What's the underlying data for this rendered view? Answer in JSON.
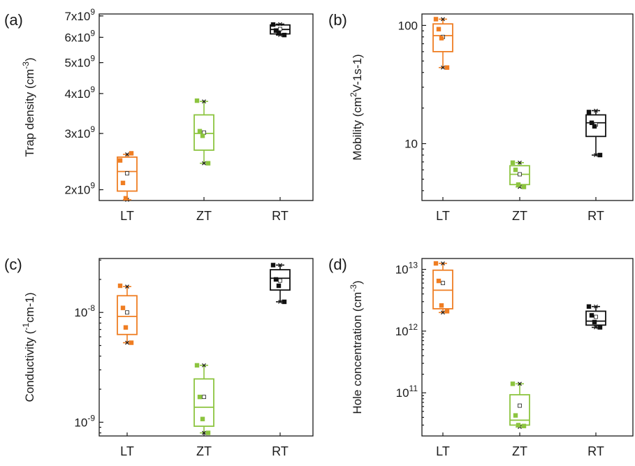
{
  "colors": {
    "LT": "#ef7d22",
    "ZT": "#8cc43f",
    "RT": "#111111"
  },
  "chart_data": [
    {
      "type": "box",
      "panel_label": "(a)",
      "ylabel": "Trap density (cm",
      "ylabel_sup": "-3",
      "ylabel_tail": ")",
      "yscale": "log",
      "ylim": [
        1850000000,
        7100000000
      ],
      "categories": [
        "LT",
        "ZT",
        "RT"
      ],
      "yticks": [
        {
          "value": 2000000000,
          "mant": "2x10",
          "exp": "9"
        },
        {
          "value": 3000000000,
          "mant": "3x10",
          "exp": "9"
        },
        {
          "value": 4000000000,
          "mant": "4x10",
          "exp": "9"
        },
        {
          "value": 5000000000,
          "mant": "5x10",
          "exp": "9"
        },
        {
          "value": 6000000000,
          "mant": "6x10",
          "exp": "9"
        },
        {
          "value": 7000000000,
          "mant": "7x10",
          "exp": "9"
        }
      ],
      "boxes": [
        {
          "category": "LT",
          "q1": 1980000000,
          "median": 2280000000,
          "q3": 2530000000,
          "whisker_low": 1860000000,
          "whisker_high": 2580000000,
          "mean": 2250000000,
          "points": [
            2470000000,
            2100000000,
            1880000000,
            2600000000
          ]
        },
        {
          "category": "ZT",
          "q1": 2660000000,
          "median": 3000000000,
          "q3": 3430000000,
          "whisker_low": 2420000000,
          "whisker_high": 3780000000,
          "mean": 3020000000,
          "points": [
            3800000000,
            3050000000,
            2950000000,
            2420000000
          ]
        },
        {
          "category": "RT",
          "q1": 6150000000,
          "median": 6350000000,
          "q3": 6560000000,
          "whisker_low": 6100000000,
          "whisker_high": 6600000000,
          "mean": 6370000000,
          "points": [
            6580000000,
            6300000000,
            6200000000,
            6100000000
          ]
        }
      ]
    },
    {
      "type": "box",
      "panel_label": "(b)",
      "ylabel": "Mobility (cm",
      "ylabel_sup": "2",
      "ylabel_tail": "V-1s-1)",
      "yscale": "log",
      "ylim": [
        3.3,
        125
      ],
      "categories": [
        "LT",
        "ZT",
        "RT"
      ],
      "yticks": [
        {
          "value": 10,
          "mant": "10",
          "exp": ""
        },
        {
          "value": 100,
          "mant": "100",
          "exp": ""
        }
      ],
      "boxes": [
        {
          "category": "LT",
          "q1": 60,
          "median": 82,
          "q3": 103,
          "whisker_low": 44,
          "whisker_high": 113,
          "mean": 80,
          "points": [
            113,
            93,
            78,
            44
          ]
        },
        {
          "category": "ZT",
          "q1": 4.5,
          "median": 5.5,
          "q3": 6.5,
          "whisker_low": 4.3,
          "whisker_high": 6.9,
          "mean": 5.5,
          "points": [
            6.9,
            6.0,
            4.5,
            4.3
          ]
        },
        {
          "category": "RT",
          "q1": 11.5,
          "median": 15,
          "q3": 17.5,
          "whisker_low": 8,
          "whisker_high": 19,
          "mean": 14.5,
          "points": [
            18.5,
            15,
            14,
            8
          ]
        }
      ]
    },
    {
      "type": "box",
      "panel_label": "(c)",
      "ylabel": "Conductivity (",
      "ylabel_sup": "-1",
      "ylabel_tail": "cm-1)",
      "yscale": "log",
      "ylim": [
        7.5e-10,
        3.1e-08
      ],
      "categories": [
        "LT",
        "ZT",
        "RT"
      ],
      "yticks": [
        {
          "value": 1e-09,
          "mant": "10",
          "exp": "-9"
        },
        {
          "value": 1e-08,
          "mant": "10",
          "exp": "-8"
        }
      ],
      "boxes": [
        {
          "category": "LT",
          "q1": 6.3e-09,
          "median": 9.2e-09,
          "q3": 1.42e-08,
          "whisker_low": 5.3e-09,
          "whisker_high": 1.72e-08,
          "mean": 1e-08,
          "points": [
            1.75e-08,
            1.1e-08,
            7.3e-09,
            5.3e-09
          ]
        },
        {
          "category": "ZT",
          "q1": 9.2e-10,
          "median": 1.37e-09,
          "q3": 2.48e-09,
          "whisker_low": 8e-10,
          "whisker_high": 3.3e-09,
          "mean": 1.7e-09,
          "points": [
            3.3e-09,
            1.7e-09,
            1.07e-09,
            8e-10
          ]
        },
        {
          "category": "RT",
          "q1": 1.6e-08,
          "median": 2.05e-08,
          "q3": 2.45e-08,
          "whisker_low": 1.25e-08,
          "whisker_high": 2.7e-08,
          "mean": 1.95e-08,
          "points": [
            2.7e-08,
            2e-08,
            1.75e-08,
            1.25e-08
          ]
        }
      ]
    },
    {
      "type": "box",
      "panel_label": "(d)",
      "ylabel": "Hole concentration (cm",
      "ylabel_sup": "-3",
      "ylabel_tail": ")",
      "yscale": "log",
      "ylim": 20000000000,
      "ylim_range": [
        20000000000,
        15000000000000
      ],
      "categories": [
        "LT",
        "ZT",
        "RT"
      ],
      "yticks": [
        {
          "value": 100000000000,
          "mant": "10",
          "exp": "11"
        },
        {
          "value": 1000000000000,
          "mant": "10",
          "exp": "12"
        },
        {
          "value": 10000000000000,
          "mant": "10",
          "exp": "13"
        }
      ],
      "boxes": [
        {
          "category": "LT",
          "q1": 2300000000000,
          "median": 4600000000000,
          "q3": 9700000000000,
          "whisker_low": 2000000000000,
          "whisker_high": 12500000000000,
          "mean": 6000000000000,
          "points": [
            12500000000000,
            6500000000000,
            2600000000000,
            2100000000000
          ]
        },
        {
          "category": "ZT",
          "q1": 30000000000,
          "median": 36000000000,
          "q3": 93000000000,
          "whisker_low": 28000000000,
          "whisker_high": 140000000000,
          "mean": 62000000000,
          "points": [
            140000000000,
            43000000000,
            30000000000,
            29000000000
          ]
        },
        {
          "category": "RT",
          "q1": 1250000000000,
          "median": 1450000000000,
          "q3": 2100000000000,
          "whisker_low": 1150000000000,
          "whisker_high": 2500000000000,
          "mean": 1700000000000,
          "points": [
            2500000000000,
            1800000000000,
            1400000000000,
            1150000000000
          ]
        }
      ]
    }
  ]
}
